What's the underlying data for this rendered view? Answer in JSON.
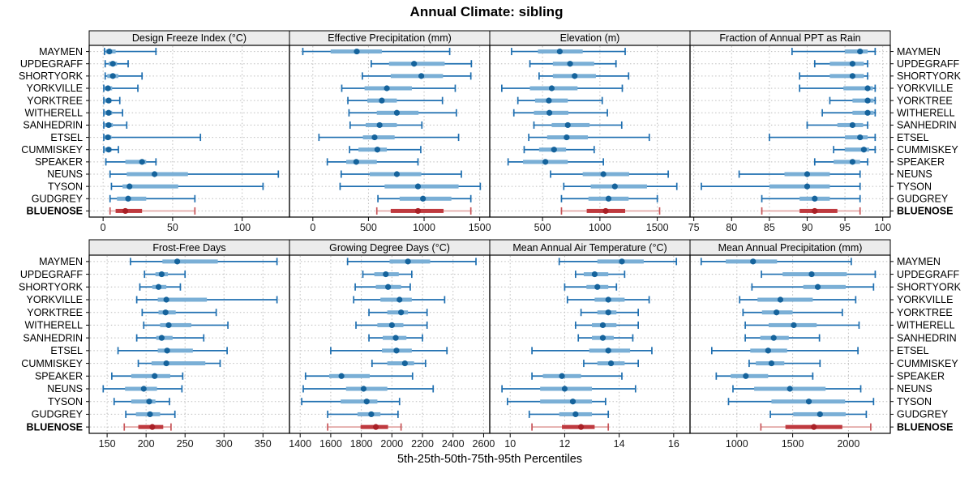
{
  "chart_data": {
    "type": "interval-dotplot",
    "title": "Annual Climate: sibling",
    "xlabel": "5th-25th-50th-75th-95th Percentiles",
    "percentiles": [
      5,
      25,
      50,
      75,
      95
    ],
    "legend_position": "none",
    "grid": "dotted",
    "stations": [
      "MAYMEN",
      "UPDEGRAFF",
      "SHORTYORK",
      "YORKVILLE",
      "YORKTREE",
      "WITHERELL",
      "SANHEDRIN",
      "ETSEL",
      "CUMMISKEY",
      "SPEAKER",
      "NEUNS",
      "TYSON",
      "GUDGREY",
      "BLUENOSE"
    ],
    "highlight_station": "BLUENOSE",
    "colors": {
      "series_blue_line": "#1f6fb0",
      "series_blue_bar": "#7aafd6",
      "series_blue_dot": "#15639c",
      "highlight_red_line": "#e2a5a3",
      "highlight_red_cap": "#c75458",
      "highlight_red_bar": "#bf3a3f",
      "highlight_red_dot": "#a92026",
      "strip_bg": "#ececec",
      "grid_line": "#bdbdbd",
      "frame": "#000000"
    },
    "panels": [
      {
        "name": "Design Freeze Index (°C)",
        "row": 0,
        "col": 0,
        "ticks": [
          0,
          50,
          100
        ],
        "xlim": [
          -10,
          134
        ],
        "values": [
          [
            1,
            2,
            4.5,
            9,
            38
          ],
          [
            1.5,
            4,
            7,
            10,
            18
          ],
          [
            1.5,
            3,
            7,
            11,
            28
          ],
          [
            0.5,
            1,
            3.5,
            6.5,
            25
          ],
          [
            0.5,
            1,
            4,
            6,
            12
          ],
          [
            0.5,
            1,
            4,
            6.5,
            14
          ],
          [
            0.5,
            1,
            4,
            7,
            17
          ],
          [
            0.5,
            1,
            3.5,
            6,
            70
          ],
          [
            0.5,
            1,
            4,
            6,
            11
          ],
          [
            2,
            16,
            28,
            31,
            38
          ],
          [
            5,
            17,
            37,
            61,
            126
          ],
          [
            6,
            14,
            19,
            54,
            115
          ],
          [
            5,
            10,
            18,
            31,
            66
          ],
          [
            5,
            9,
            16,
            28,
            66
          ]
        ]
      },
      {
        "name": "Effective Precipitation (mm)",
        "row": 0,
        "col": 1,
        "ticks": [
          0,
          500,
          1000,
          1500
        ],
        "xlim": [
          -210,
          1590
        ],
        "values": [
          [
            -90,
            160,
            395,
            620,
            1230
          ],
          [
            525,
            685,
            910,
            1185,
            1425
          ],
          [
            445,
            700,
            975,
            1170,
            1420
          ],
          [
            260,
            465,
            665,
            890,
            1280
          ],
          [
            315,
            490,
            620,
            755,
            1165
          ],
          [
            325,
            575,
            755,
            950,
            1290
          ],
          [
            335,
            475,
            600,
            755,
            980
          ],
          [
            55,
            450,
            555,
            735,
            1310
          ],
          [
            330,
            410,
            580,
            665,
            970
          ],
          [
            130,
            300,
            390,
            575,
            945
          ],
          [
            255,
            510,
            755,
            975,
            1335
          ],
          [
            245,
            645,
            945,
            1310,
            1505
          ],
          [
            585,
            780,
            990,
            1245,
            1420
          ],
          [
            575,
            700,
            945,
            1175,
            1420
          ]
        ]
      },
      {
        "name": "Elevation (m)",
        "row": 0,
        "col": 2,
        "ticks": [
          500,
          1000,
          1500
        ],
        "xlim": [
          40,
          1785
        ],
        "values": [
          [
            230,
            460,
            650,
            850,
            1220
          ],
          [
            390,
            590,
            740,
            950,
            1140
          ],
          [
            470,
            590,
            780,
            965,
            1250
          ],
          [
            145,
            390,
            580,
            805,
            1195
          ],
          [
            285,
            435,
            555,
            720,
            1020
          ],
          [
            250,
            425,
            560,
            725,
            1065
          ],
          [
            425,
            580,
            720,
            910,
            1190
          ],
          [
            380,
            540,
            710,
            895,
            1430
          ],
          [
            340,
            470,
            600,
            705,
            950
          ],
          [
            200,
            330,
            525,
            720,
            1030
          ],
          [
            570,
            850,
            1030,
            1255,
            1595
          ],
          [
            685,
            920,
            1130,
            1410,
            1670
          ],
          [
            665,
            900,
            1075,
            1250,
            1500
          ],
          [
            665,
            885,
            1050,
            1220,
            1520
          ]
        ]
      },
      {
        "name": "Fraction of Annual PPT as Rain",
        "row": 0,
        "col": 3,
        "ticks": [
          75,
          80,
          85,
          90,
          95,
          100
        ],
        "xlim": [
          74.5,
          101
        ],
        "values": [
          [
            88,
            95,
            97,
            98,
            99
          ],
          [
            91,
            93,
            96,
            97.5,
            98
          ],
          [
            89,
            93,
            96,
            97.5,
            98
          ],
          [
            89,
            94.8,
            98,
            98.7,
            99
          ],
          [
            93,
            96,
            98,
            98.8,
            99
          ],
          [
            92,
            96,
            98,
            98.8,
            99
          ],
          [
            90,
            94,
            96,
            97.4,
            98
          ],
          [
            85,
            95,
            97,
            98,
            99
          ],
          [
            93.5,
            95,
            97.5,
            98.2,
            99
          ],
          [
            91,
            93.5,
            96,
            97,
            98
          ],
          [
            81,
            87,
            90,
            93,
            97
          ],
          [
            76,
            85,
            90,
            93,
            97
          ],
          [
            84,
            89,
            91,
            93,
            97
          ],
          [
            84,
            89,
            91,
            94,
            97
          ]
        ]
      },
      {
        "name": "Frost-Free Days",
        "row": 1,
        "col": 0,
        "ticks": [
          150,
          200,
          250,
          300,
          350
        ],
        "xlim": [
          127,
          384
        ],
        "values": [
          [
            180,
            221,
            240,
            292,
            368
          ],
          [
            198,
            212,
            220,
            228,
            250
          ],
          [
            192,
            208,
            216,
            226,
            244
          ],
          [
            188,
            215,
            226,
            278,
            368
          ],
          [
            195,
            216,
            225,
            238,
            290
          ],
          [
            197,
            218,
            229,
            258,
            305
          ],
          [
            188,
            213,
            220,
            234,
            274
          ],
          [
            164,
            215,
            227,
            260,
            304
          ],
          [
            190,
            207,
            226,
            276,
            295
          ],
          [
            156,
            181,
            211,
            231,
            247
          ],
          [
            145,
            173,
            197,
            214,
            246
          ],
          [
            159,
            181,
            204,
            212,
            230
          ],
          [
            174,
            187,
            205,
            218,
            237
          ],
          [
            172,
            190,
            208,
            222,
            232
          ]
        ]
      },
      {
        "name": "Growing Degree Days (°C)",
        "row": 1,
        "col": 1,
        "ticks": [
          1400,
          1600,
          1800,
          2000,
          2200,
          2400,
          2600
        ],
        "xlim": [
          1330,
          2640
        ],
        "values": [
          [
            1710,
            1985,
            2105,
            2250,
            2550
          ],
          [
            1810,
            1885,
            1960,
            2045,
            2130
          ],
          [
            1760,
            1895,
            1975,
            2060,
            2120
          ],
          [
            1750,
            1925,
            2050,
            2130,
            2345
          ],
          [
            1850,
            1970,
            2060,
            2105,
            2230
          ],
          [
            1765,
            1905,
            2000,
            2075,
            2230
          ],
          [
            1850,
            1940,
            2025,
            2095,
            2200
          ],
          [
            1600,
            1935,
            2030,
            2130,
            2360
          ],
          [
            1870,
            1970,
            2085,
            2145,
            2220
          ],
          [
            1435,
            1590,
            1670,
            1855,
            2135
          ],
          [
            1420,
            1700,
            1815,
            1970,
            2270
          ],
          [
            1410,
            1665,
            1835,
            1905,
            2050
          ],
          [
            1580,
            1775,
            1865,
            1925,
            2040
          ],
          [
            1580,
            1795,
            1895,
            1975,
            2060
          ]
        ]
      },
      {
        "name": "Mean Annual Air Temperature (°C)",
        "row": 1,
        "col": 2,
        "ticks": [
          10,
          12,
          14,
          16
        ],
        "xlim": [
          9.25,
          16.6
        ],
        "values": [
          [
            11.8,
            13.2,
            14.1,
            14.9,
            16.1
          ],
          [
            12.4,
            12.7,
            13.1,
            13.6,
            14.2
          ],
          [
            12.0,
            12.8,
            13.2,
            13.6,
            13.9
          ],
          [
            12.1,
            13.1,
            13.6,
            14.2,
            15.1
          ],
          [
            12.6,
            13.2,
            13.6,
            13.9,
            14.7
          ],
          [
            12.4,
            13.0,
            13.4,
            13.9,
            14.7
          ],
          [
            12.5,
            13.0,
            13.4,
            13.8,
            14.5
          ],
          [
            10.8,
            12.9,
            13.6,
            14.4,
            15.2
          ],
          [
            12.7,
            13.2,
            13.7,
            14.2,
            14.7
          ],
          [
            10.8,
            11.2,
            11.9,
            12.6,
            14.1
          ],
          [
            9.7,
            11.1,
            12.0,
            13.0,
            14.6
          ],
          [
            9.9,
            11.1,
            12.3,
            13.0,
            13.5
          ],
          [
            10.7,
            11.8,
            12.4,
            13.0,
            13.6
          ],
          [
            10.8,
            11.9,
            12.6,
            13.1,
            13.6
          ]
        ]
      },
      {
        "name": "Mean Annual Precipitation (mm)",
        "row": 1,
        "col": 3,
        "ticks": [
          1000,
          1500,
          2000
        ],
        "xlim": [
          580,
          2375
        ],
        "values": [
          [
            680,
            900,
            1145,
            1360,
            2025
          ],
          [
            1220,
            1410,
            1670,
            1985,
            2240
          ],
          [
            1135,
            1595,
            1725,
            1975,
            2225
          ],
          [
            1025,
            1185,
            1390,
            1680,
            2065
          ],
          [
            1055,
            1225,
            1355,
            1500,
            1945
          ],
          [
            1075,
            1285,
            1510,
            1715,
            2095
          ],
          [
            1075,
            1210,
            1330,
            1465,
            1740
          ],
          [
            775,
            1120,
            1280,
            1450,
            2085
          ],
          [
            1110,
            1170,
            1310,
            1425,
            1745
          ],
          [
            815,
            945,
            1080,
            1280,
            1680
          ],
          [
            965,
            1155,
            1475,
            1795,
            2110
          ],
          [
            925,
            1310,
            1645,
            1970,
            2225
          ],
          [
            1300,
            1505,
            1745,
            1975,
            2160
          ],
          [
            1215,
            1435,
            1690,
            1945,
            2200
          ]
        ]
      }
    ]
  }
}
